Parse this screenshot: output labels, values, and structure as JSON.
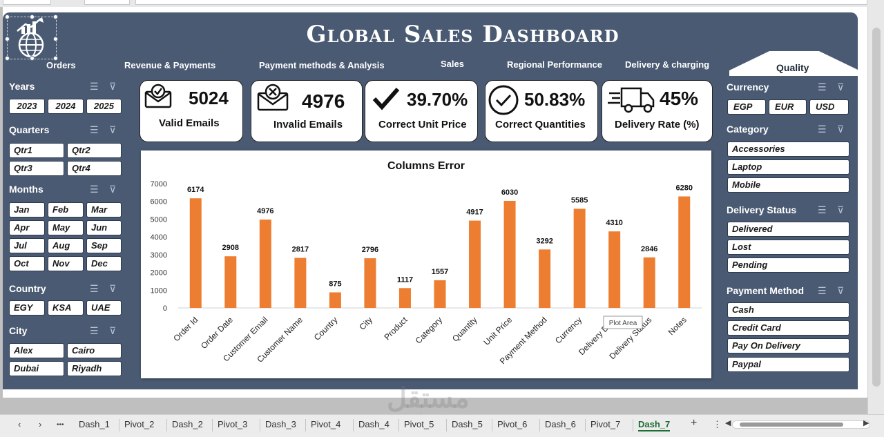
{
  "title": "Global Sales Dashboard",
  "nav": [
    "Orders",
    "Revenue & Payments",
    "Payment methods & Analysis",
    "Sales",
    "Regional Performance",
    "Delivery & charging",
    "Quality"
  ],
  "left_filters": {
    "years": {
      "title": "Years",
      "items": [
        "2023",
        "2024",
        "2025"
      ]
    },
    "quarters": {
      "title": "Quarters",
      "items": [
        "Qtr1",
        "Qtr2",
        "Qtr3",
        "Qtr4"
      ]
    },
    "months": {
      "title": "Months",
      "items": [
        "Jan",
        "Feb",
        "Mar",
        "Apr",
        "May",
        "Jun",
        "Jul",
        "Aug",
        "Sep",
        "Oct",
        "Nov",
        "Dec"
      ]
    },
    "country": {
      "title": "Country",
      "items": [
        "EGY",
        "KSA",
        "UAE"
      ]
    },
    "city": {
      "title": "City",
      "items": [
        "Alex",
        "Cairo",
        "Dubai",
        "Riyadh"
      ]
    }
  },
  "right_filters": {
    "currency": {
      "title": "Currency",
      "items": [
        "EGP",
        "EUR",
        "USD"
      ]
    },
    "category": {
      "title": "Category",
      "items": [
        "Accessories",
        "Laptop",
        "Mobile"
      ]
    },
    "delivery_status": {
      "title": "Delivery Status",
      "items": [
        "Delivered",
        "Lost",
        "Pending"
      ]
    },
    "payment_method": {
      "title": "Payment Method",
      "items": [
        "Cash",
        "Credit Card",
        "Pay On Delivery",
        "Paypal"
      ]
    }
  },
  "kpis": [
    {
      "value": "5024",
      "label": "Valid Emails",
      "icon": "email-check-icon"
    },
    {
      "value": "4976",
      "label": "Invalid Emails",
      "icon": "email-x-icon"
    },
    {
      "value": "39.70%",
      "label": "Correct Unit Price",
      "icon": "checkmark-icon"
    },
    {
      "value": "50.83%",
      "label": "Correct Quantities",
      "icon": "circle-check-icon"
    },
    {
      "value": "45%",
      "label": "Delivery Rate (%)",
      "icon": "delivery-truck-icon"
    }
  ],
  "chart_data": {
    "type": "bar",
    "title": "Columns Error",
    "categories": [
      "Order Id",
      "Order Date",
      "Customer Email",
      "Customer Name",
      "Country",
      "City",
      "Product",
      "Category",
      "Quantity",
      "Unit Price",
      "Payment Method",
      "Currency",
      "Delivery Date",
      "Delivery Status",
      "Notes"
    ],
    "values": [
      6174,
      2908,
      4976,
      2817,
      875,
      2796,
      1117,
      1557,
      4917,
      6030,
      3292,
      5585,
      4310,
      2846,
      6280
    ],
    "ylim": [
      0,
      7000
    ],
    "yticks": [
      0,
      1000,
      2000,
      3000,
      4000,
      5000,
      6000,
      7000
    ],
    "bar_color": "#ed7d31",
    "grid": false,
    "legend": "none",
    "tooltip": "Plot Area"
  },
  "sheet_tabs": [
    "Dash_1",
    "Pivot_2",
    "Dash_2",
    "Pivot_3",
    "Dash_3",
    "Pivot_4",
    "Dash_4",
    "Pivot_5",
    "Dash_5",
    "Pivot_6",
    "Dash_6",
    "Pivot_7",
    "Dash_7"
  ],
  "active_tab": "Dash_7",
  "tab_controls": {
    "prev": "‹",
    "next": "›",
    "more": "•••",
    "add": "+",
    "menu": "⋮"
  },
  "watermark": "مستقل",
  "watermark_url": "mostaql.com",
  "colors": {
    "panel": "#4a5a72",
    "accent": "#ed7d31",
    "active_tab": "#1b6e33"
  }
}
